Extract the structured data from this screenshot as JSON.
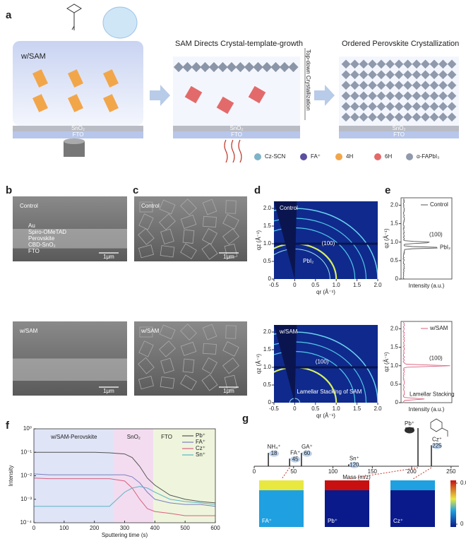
{
  "panel_labels": [
    "a",
    "b",
    "c",
    "d",
    "e",
    "f",
    "g"
  ],
  "schematic": {
    "stages": [
      "w/SAM",
      "SAM Directs Crystal-template-growth",
      "Ordered Perovskite Crystallization"
    ],
    "layers": [
      "SnO₂",
      "FTO"
    ],
    "arrow_text": "Top-down Crystallization",
    "legend": [
      "Cz-SCN",
      "FA⁺",
      "4H",
      "6H",
      "α-FAPbI₃"
    ]
  },
  "sem_cross": {
    "top": {
      "label": "Control",
      "layers": [
        "Au",
        "Spiro-OMeTAD",
        "Perovskite",
        "CBD-SnO₂",
        "FTO"
      ],
      "scale": "1μm"
    },
    "bottom": {
      "label": "w/SAM",
      "scale": "1μm"
    }
  },
  "sem_top": {
    "top": {
      "label": "Control",
      "scale": "1μm"
    },
    "bottom": {
      "label": "w/SAM",
      "scale": "1μm"
    }
  },
  "giwaxs": {
    "xlabel": "qr (Å⁻¹)",
    "ylabel": "qz (Å⁻¹)",
    "xlim": [
      -0.5,
      2.0
    ],
    "ylim": [
      0,
      2.2
    ],
    "xticks": [
      -0.5,
      0,
      0.5,
      {
        "value": 1,
        "label": "1.0"
      },
      1.5,
      {
        "value": 2,
        "label": "2.0"
      }
    ],
    "yticks": [
      0,
      0.5,
      {
        "value": 1,
        "label": "1.0"
      },
      1.5,
      {
        "value": 2,
        "label": "2.0"
      }
    ],
    "top": {
      "label": "Control",
      "annotations": [
        "(100)",
        "PbI₂"
      ]
    },
    "bottom": {
      "label": "w/SAM",
      "annotations": [
        "(100)",
        "Lamellar Stacking of SAM"
      ]
    }
  },
  "profiles": {
    "xlabel": "Intensity (a.u.)",
    "ylabel": "qz (Å⁻¹)",
    "ylim": [
      0,
      2.2
    ],
    "yticks": [
      0,
      0.5,
      {
        "value": 1,
        "label": "1.0"
      },
      1.5,
      {
        "value": 2,
        "label": "2.0"
      }
    ],
    "top": {
      "label": "Control",
      "annotations": [
        "(100)",
        "PbI₂"
      ],
      "color": "#555555"
    },
    "bottom": {
      "label": "w/SAM",
      "annotations": [
        "(100)",
        "Lamellar Stacking"
      ],
      "color": "#d9607f"
    }
  },
  "chart_data": [
    {
      "type": "line",
      "xlabel": "Sputtering time (s)",
      "ylabel": "Intensity",
      "log_y": true,
      "xlim": [
        0,
        600
      ],
      "xticks": [
        0,
        100,
        200,
        300,
        400,
        500,
        600
      ],
      "ylim": [
        0.0001,
        1
      ],
      "yticks": [
        {
          "value": 0.0001,
          "label": "10⁻⁴"
        },
        {
          "value": 0.001,
          "label": "10⁻³"
        },
        {
          "value": 0.01,
          "label": "10⁻²"
        },
        {
          "value": 0.1,
          "label": "10⁻¹"
        },
        {
          "value": 1,
          "label": "10⁰"
        }
      ],
      "regions": [
        {
          "name": "w/SAM-Perovskite",
          "range": [
            0,
            265
          ],
          "color": "#dfe4f7"
        },
        {
          "name": "SnO₂",
          "range": [
            265,
            395
          ],
          "color": "#f3dcf0"
        },
        {
          "name": "FTO",
          "range": [
            395,
            600
          ],
          "color": "#eef5dc"
        }
      ],
      "x": [
        0,
        50,
        100,
        150,
        200,
        250,
        300,
        325,
        350,
        375,
        400,
        450,
        500,
        550,
        600
      ],
      "series": [
        {
          "name": "Pb⁺",
          "color": "#555555",
          "values": [
            0.1,
            0.1,
            0.1,
            0.1,
            0.1,
            0.095,
            0.085,
            0.06,
            0.025,
            0.008,
            0.004,
            0.0015,
            0.001,
            0.0008,
            0.0007
          ]
        },
        {
          "name": "FA⁺",
          "color": "#7b7fbf",
          "values": [
            0.012,
            0.011,
            0.011,
            0.011,
            0.011,
            0.011,
            0.011,
            0.009,
            0.005,
            0.002,
            0.001,
            0.0007,
            0.0006,
            0.0006,
            0.0005
          ]
        },
        {
          "name": "Cz⁺",
          "color": "#d9607f",
          "values": [
            0.008,
            0.0075,
            0.0075,
            0.0075,
            0.0075,
            0.0075,
            0.006,
            0.003,
            0.001,
            0.0004,
            0.0003,
            0.00025,
            0.0002,
            0.0002,
            0.0002
          ]
        },
        {
          "name": "Sn⁺",
          "color": "#5ab4c4",
          "values": [
            0.0005,
            0.0005,
            0.0005,
            0.0005,
            0.0005,
            0.0005,
            0.002,
            0.003,
            0.0035,
            0.003,
            0.002,
            0.001,
            0.0008,
            0.0007,
            0.0006
          ]
        }
      ]
    },
    {
      "type": "spectrum",
      "xlabel": "Mass (m/z)",
      "xlim": [
        0,
        260
      ],
      "xticks": [
        0,
        50,
        100,
        150,
        200,
        250
      ],
      "color": "#222222",
      "names": [
        "NH₄⁺",
        "FA⁺",
        "GA⁺",
        "Sn⁺",
        "Pb⁺",
        "Cz⁺"
      ],
      "x": [
        18,
        45,
        60,
        120,
        208,
        225
      ],
      "values": [
        0.35,
        0.2,
        0.35,
        0.05,
        1.0,
        0.55
      ],
      "maps": [
        "FA⁺",
        "Pb⁺",
        "Cz⁺"
      ],
      "colorbar_ticks": [
        0.02,
        0
      ]
    }
  ]
}
